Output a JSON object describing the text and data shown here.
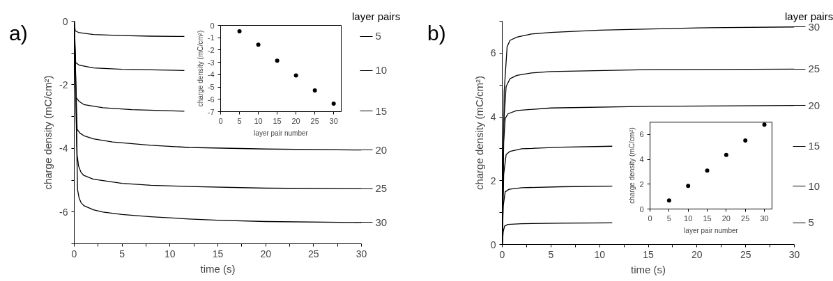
{
  "chart_data": [
    {
      "type": "line",
      "title": "a)",
      "xlabel": "time (s)",
      "ylabel": "charge density (mC/cm²)",
      "legend_title": "layer pairs",
      "legend": "right",
      "grid": false,
      "marker": "none",
      "line_style": "solid",
      "xlim": [
        0,
        30
      ],
      "ylim": [
        -7,
        0
      ],
      "xticks": [
        0,
        {
          "value": 2.5,
          "label": null
        },
        5,
        {
          "value": 7.5,
          "label": null
        },
        10,
        {
          "value": 12.5,
          "label": null
        },
        15,
        {
          "value": 17.5,
          "label": null
        },
        20,
        {
          "value": 22.5,
          "label": null
        },
        25,
        {
          "value": 27.5,
          "label": null
        },
        30
      ],
      "yticks": [
        0,
        {
          "value": -1,
          "label": null
        },
        -2,
        {
          "value": -3,
          "label": null
        },
        -4,
        {
          "value": -5,
          "label": null
        },
        -6,
        {
          "value": -7,
          "label": null
        }
      ],
      "series": [
        {
          "name": "5",
          "color": "#000000",
          "x": [
            0,
            0.1,
            0.5,
            2,
            5,
            8,
            11.5
          ],
          "values": [
            0,
            -0.3,
            -0.36,
            -0.42,
            -0.45,
            -0.47,
            -0.48
          ]
        },
        {
          "name": "10",
          "color": "#000000",
          "x": [
            0,
            0.15,
            0.5,
            2,
            5,
            8,
            11.5
          ],
          "values": [
            0,
            -1.3,
            -1.38,
            -1.47,
            -1.51,
            -1.53,
            -1.55
          ]
        },
        {
          "name": "15",
          "color": "#000000",
          "x": [
            0,
            0.2,
            0.5,
            1,
            3,
            6,
            9,
            11.5
          ],
          "values": [
            0,
            -2.4,
            -2.52,
            -2.62,
            -2.72,
            -2.78,
            -2.81,
            -2.83
          ]
        },
        {
          "name": "20",
          "color": "#000000",
          "x": [
            0,
            0.3,
            0.6,
            1,
            2,
            4,
            8,
            12,
            20,
            30
          ],
          "values": [
            0,
            -3.4,
            -3.52,
            -3.6,
            -3.7,
            -3.8,
            -3.9,
            -3.97,
            -4.02,
            -4.05
          ]
        },
        {
          "name": "25",
          "color": "#000000",
          "x": [
            0,
            0.3,
            0.45,
            0.7,
            1,
            2,
            5,
            8,
            12,
            20,
            30
          ],
          "values": [
            0,
            -4.2,
            -4.55,
            -4.75,
            -4.85,
            -4.97,
            -5.1,
            -5.16,
            -5.2,
            -5.25,
            -5.27
          ]
        },
        {
          "name": "30",
          "color": "#000000",
          "x": [
            0,
            0.35,
            0.5,
            0.7,
            1,
            2,
            3,
            5,
            8,
            12,
            15,
            20,
            30
          ],
          "values": [
            0,
            -5.3,
            -5.55,
            -5.7,
            -5.8,
            -5.93,
            -6.0,
            -6.08,
            -6.15,
            -6.22,
            -6.26,
            -6.3,
            -6.33
          ]
        }
      ]
    },
    {
      "type": "scatter",
      "xlabel": "layer pair number",
      "ylabel": "charge density (mC/cm²)",
      "grid": false,
      "marker": "circle",
      "color": "#000000",
      "x": [
        5,
        10,
        15,
        20,
        25,
        30
      ],
      "values": [
        -0.48,
        -1.57,
        -2.87,
        -4.07,
        -5.28,
        -6.35
      ],
      "xlim": [
        0,
        32
      ],
      "ylim": [
        -7,
        0
      ],
      "xticks": [
        0,
        5,
        10,
        15,
        20,
        25,
        30
      ],
      "yticks": [
        0,
        -1,
        -2,
        -3,
        -4,
        -5,
        -6,
        -7
      ]
    },
    {
      "type": "line",
      "title": "b)",
      "xlabel": "time (s)",
      "ylabel": "charge density (mC/cm²)",
      "legend_title": "layer pairs",
      "legend": "right",
      "grid": false,
      "marker": "none",
      "line_style": "solid",
      "xlim": [
        0,
        30
      ],
      "ylim": [
        0,
        7
      ],
      "xticks": [
        0,
        {
          "value": 2.5,
          "label": null
        },
        5,
        {
          "value": 7.5,
          "label": null
        },
        10,
        {
          "value": 12.5,
          "label": null
        },
        15,
        {
          "value": 17.5,
          "label": null
        },
        20,
        {
          "value": 22.5,
          "label": null
        },
        25,
        {
          "value": 27.5,
          "label": null
        },
        30
      ],
      "yticks": [
        0,
        {
          "value": 1,
          "label": null
        },
        2,
        {
          "value": 3,
          "label": null
        },
        4,
        {
          "value": 5,
          "label": null
        },
        6,
        {
          "value": 7,
          "label": null
        }
      ],
      "series": [
        {
          "name": "5",
          "color": "#000000",
          "x": [
            0,
            0.1,
            0.25,
            0.6,
            2,
            6,
            11.3
          ],
          "values": [
            0,
            0.4,
            0.58,
            0.63,
            0.65,
            0.67,
            0.68
          ]
        },
        {
          "name": "10",
          "color": "#000000",
          "x": [
            0,
            0.1,
            0.3,
            0.7,
            2,
            6,
            11.3
          ],
          "values": [
            0,
            1.2,
            1.65,
            1.73,
            1.78,
            1.81,
            1.83
          ]
        },
        {
          "name": "15",
          "color": "#000000",
          "x": [
            0,
            0.15,
            0.4,
            0.8,
            2,
            6,
            11.3
          ],
          "values": [
            0,
            2.2,
            2.82,
            2.92,
            3.0,
            3.05,
            3.08
          ]
        },
        {
          "name": "20",
          "color": "#000000",
          "x": [
            0,
            0.15,
            0.3,
            0.6,
            1.5,
            5,
            15,
            30
          ],
          "values": [
            0,
            3.2,
            3.95,
            4.1,
            4.2,
            4.28,
            4.33,
            4.36
          ]
        },
        {
          "name": "25",
          "color": "#000000",
          "x": [
            0,
            0.15,
            0.4,
            0.8,
            1.5,
            3,
            5,
            15,
            30
          ],
          "values": [
            0,
            3.8,
            4.95,
            5.2,
            5.3,
            5.38,
            5.42,
            5.48,
            5.5
          ]
        },
        {
          "name": "30",
          "color": "#000000",
          "x": [
            0,
            0.2,
            0.5,
            0.8,
            1.5,
            3,
            5,
            10,
            20,
            30
          ],
          "values": [
            0,
            4.8,
            6.2,
            6.4,
            6.5,
            6.6,
            6.65,
            6.72,
            6.79,
            6.82
          ]
        }
      ]
    },
    {
      "type": "scatter",
      "xlabel": "layer pair number",
      "ylabel": "charge density (mC/cm²)",
      "grid": false,
      "marker": "circle",
      "color": "#000000",
      "x": [
        5,
        10,
        15,
        20,
        25,
        30
      ],
      "values": [
        0.69,
        1.86,
        3.1,
        4.35,
        5.52,
        6.79
      ],
      "xlim": [
        0,
        32
      ],
      "ylim": [
        0,
        7
      ],
      "xticks": [
        0,
        5,
        10,
        15,
        20,
        25,
        30
      ],
      "yticks": [
        0,
        2,
        4,
        6
      ]
    }
  ]
}
